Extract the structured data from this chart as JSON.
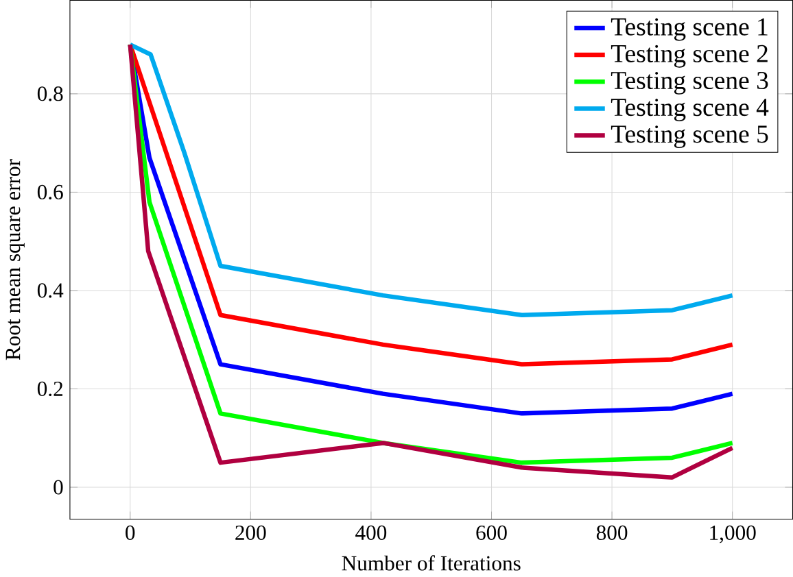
{
  "chart_data": {
    "type": "line",
    "xlabel": "Number of Iterations",
    "ylabel": "Root mean square error",
    "xlim": [
      -100,
      1100
    ],
    "ylim": [
      -0.065,
      0.99
    ],
    "xticks": [
      0,
      200,
      400,
      600,
      800,
      {
        "value": 1000,
        "label": "1,000"
      }
    ],
    "yticks": [
      0,
      0.2,
      0.4,
      0.6,
      0.8
    ],
    "grid": true,
    "legend": "top right",
    "marker": "none",
    "line_style": "solid",
    "series": [
      {
        "name": "Testing scene 1",
        "color": "#0000ff",
        "x": [
          0,
          32,
          150,
          420,
          650,
          900,
          1000
        ],
        "values": [
          0.9,
          0.67,
          0.25,
          0.19,
          0.15,
          0.16,
          0.19
        ]
      },
      {
        "name": "Testing scene 2",
        "color": "#ff0000",
        "x": [
          0,
          150,
          420,
          650,
          900,
          1000
        ],
        "values": [
          0.9,
          0.35,
          0.29,
          0.25,
          0.26,
          0.29
        ]
      },
      {
        "name": "Testing scene 3",
        "color": "#00ff00",
        "x": [
          0,
          32,
          150,
          420,
          650,
          900,
          1000
        ],
        "values": [
          0.9,
          0.58,
          0.15,
          0.09,
          0.05,
          0.06,
          0.09
        ]
      },
      {
        "name": "Testing scene 4",
        "color": "#00aaee",
        "x": [
          0,
          34,
          90,
          150,
          420,
          650,
          900,
          1000
        ],
        "values": [
          0.9,
          0.88,
          0.68,
          0.45,
          0.39,
          0.35,
          0.36,
          0.39
        ]
      },
      {
        "name": "Testing scene 5",
        "color": "#b00040",
        "x": [
          0,
          30,
          150,
          420,
          650,
          900,
          1000
        ],
        "values": [
          0.9,
          0.48,
          0.05,
          0.09,
          0.04,
          0.02,
          0.08
        ]
      }
    ]
  }
}
